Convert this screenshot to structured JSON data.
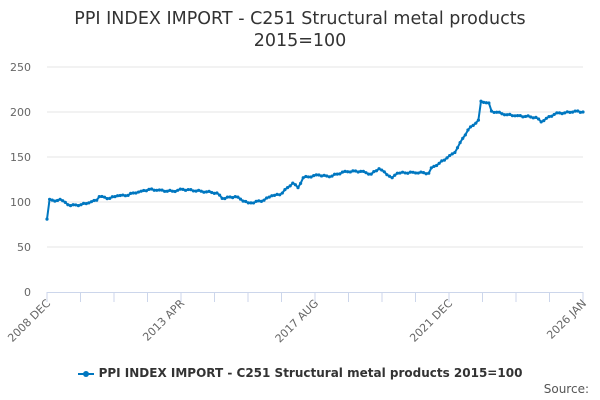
{
  "title_line1": "PPI INDEX IMPORT - C251 Structural metal products",
  "title_line2": "2015=100",
  "source": "Source:",
  "chart_data": {
    "type": "line",
    "title": "PPI INDEX IMPORT - C251 Structural metal products 2015=100",
    "xlabel": "",
    "ylabel": "",
    "ylim": [
      0,
      250
    ],
    "yticks": [
      "0",
      "50",
      "100",
      "150",
      "200",
      "250"
    ],
    "xticks": [
      "2008 DEC",
      "2013 APR",
      "2017 AUG",
      "2021 DEC",
      "2026 JAN"
    ],
    "grid": true,
    "legend": "bottom-center",
    "color": "#0077c0",
    "series": [
      {
        "name": "PPI INDEX IMPORT - C251 Structural metal products 2015=100",
        "points": [
          [
            "2008-12",
            81
          ],
          [
            "2009-01",
            103
          ],
          [
            "2009-03",
            101
          ],
          [
            "2009-05",
            103
          ],
          [
            "2009-08",
            97
          ],
          [
            "2009-09",
            96
          ],
          [
            "2010-01",
            97
          ],
          [
            "2010-04",
            99
          ],
          [
            "2010-07",
            102
          ],
          [
            "2010-08",
            106
          ],
          [
            "2010-12",
            104
          ],
          [
            "2011-03",
            107
          ],
          [
            "2011-06",
            107
          ],
          [
            "2011-09",
            110
          ],
          [
            "2011-12",
            112
          ],
          [
            "2012-03",
            114
          ],
          [
            "2012-06",
            113
          ],
          [
            "2012-12",
            112
          ],
          [
            "2013-04",
            114
          ],
          [
            "2013-11",
            112
          ],
          [
            "2014-05",
            110
          ],
          [
            "2014-07",
            104
          ],
          [
            "2014-12",
            106
          ],
          [
            "2015-05",
            99
          ],
          [
            "2015-06",
            99
          ],
          [
            "2015-11",
            102
          ],
          [
            "2016-02",
            107
          ],
          [
            "2016-05",
            108
          ],
          [
            "2016-08",
            116
          ],
          [
            "2016-10",
            121
          ],
          [
            "2016-12",
            116
          ],
          [
            "2017-02",
            127
          ],
          [
            "2017-08",
            130
          ],
          [
            "2017-12",
            128
          ],
          [
            "2018-06",
            134
          ],
          [
            "2018-12",
            134
          ],
          [
            "2019-04",
            131
          ],
          [
            "2019-07",
            137
          ],
          [
            "2019-12",
            127
          ],
          [
            "2020-02",
            132
          ],
          [
            "2020-08",
            133
          ],
          [
            "2021-02",
            132
          ],
          [
            "2021-03",
            138
          ],
          [
            "2021-06",
            143
          ],
          [
            "2021-09",
            149
          ],
          [
            "2021-12",
            155
          ],
          [
            "2022-02",
            166
          ],
          [
            "2022-05",
            180
          ],
          [
            "2022-09",
            191
          ],
          [
            "2022-10",
            212
          ],
          [
            "2023-01",
            210
          ],
          [
            "2023-02",
            201
          ],
          [
            "2023-08",
            197
          ],
          [
            "2023-12",
            196
          ],
          [
            "2024-07",
            194
          ],
          [
            "2024-09",
            189
          ],
          [
            "2024-11",
            193
          ],
          [
            "2025-03",
            199
          ],
          [
            "2025-06",
            199
          ],
          [
            "2025-10",
            201
          ],
          [
            "2026-01",
            200
          ]
        ]
      }
    ]
  }
}
